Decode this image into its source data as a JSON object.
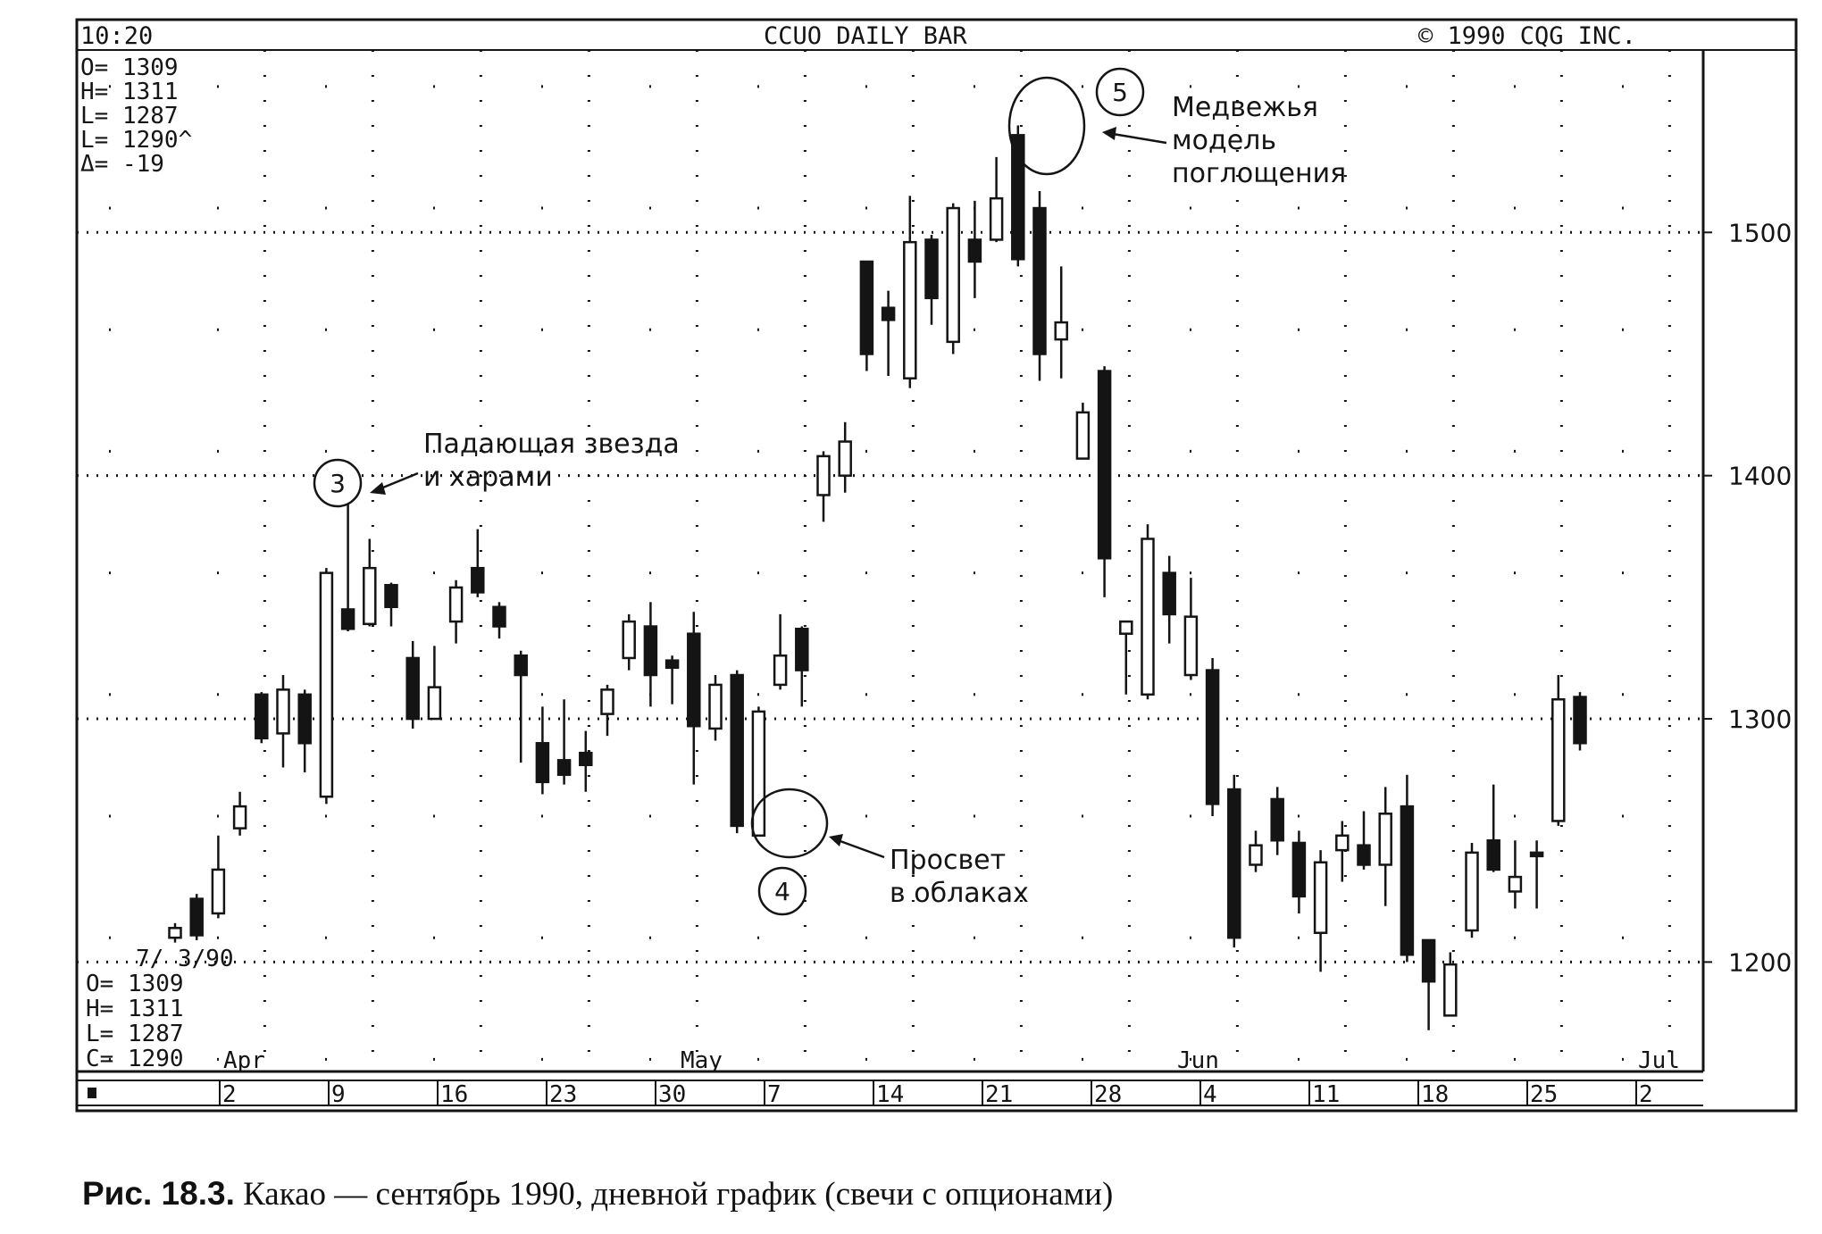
{
  "header": {
    "time": "10:20",
    "title": "CCUO DAILY BAR",
    "copyright": "©  1990 CQG INC."
  },
  "ohlc_top": [
    "O= 1309",
    "H= 1311",
    "L= 1287",
    "L= 1290^",
    "Δ=  -19"
  ],
  "ohlc_bottom": {
    "date": "7/ 3/90",
    "lines": [
      "O=  1309",
      "H=  1311",
      "L=  1287",
      "C=  1290"
    ]
  },
  "annotations": {
    "shooting_star": {
      "number": "3",
      "line1": "Падающая звезда",
      "line2": "и харами"
    },
    "piercing": {
      "number": "4",
      "line1": "Просвет",
      "line2": "в облаках"
    },
    "engulfing": {
      "number": "5",
      "line1": "Медвежья",
      "line2": "модель",
      "line3": "поглощения"
    }
  },
  "caption": {
    "label": "Рис. 18.3.",
    "text": "Какао — сентябрь 1990, дневной график (свечи с опционами)"
  },
  "colors": {
    "ink": "#141414",
    "background": "#ffffff"
  },
  "chart_data": {
    "type": "candlestick",
    "title": "CCUO DAILY BAR",
    "ylim": [
      1155,
      1575
    ],
    "y_ticks": [
      1200,
      1300,
      1400,
      1500
    ],
    "y_tick_labels": [
      "1200",
      "1300",
      "1400",
      "1500"
    ],
    "month_labels": [
      "Apr",
      "May",
      "Jun",
      "Jul"
    ],
    "week_labels": [
      "2",
      "9",
      "16",
      "23",
      "30",
      "7",
      "14",
      "21",
      "28",
      "4",
      "11",
      "18",
      "25",
      "2"
    ],
    "grid": true,
    "candles": [
      {
        "date": "Mar 28",
        "o": 1210,
        "h": 1216,
        "l": 1208,
        "c": 1214
      },
      {
        "date": "Mar 29",
        "o": 1226,
        "h": 1228,
        "l": 1209,
        "c": 1211
      },
      {
        "date": "Apr 2",
        "o": 1220,
        "h": 1252,
        "l": 1218,
        "c": 1238
      },
      {
        "date": "Apr 3",
        "o": 1255,
        "h": 1270,
        "l": 1252,
        "c": 1264
      },
      {
        "date": "Apr 4",
        "o": 1310,
        "h": 1311,
        "l": 1290,
        "c": 1292
      },
      {
        "date": "Apr 5",
        "o": 1294,
        "h": 1318,
        "l": 1280,
        "c": 1312
      },
      {
        "date": "Apr 6",
        "o": 1310,
        "h": 1312,
        "l": 1278,
        "c": 1290
      },
      {
        "date": "Apr 9",
        "o": 1268,
        "h": 1362,
        "l": 1265,
        "c": 1360
      },
      {
        "date": "Apr 10",
        "o": 1345,
        "h": 1395,
        "l": 1336,
        "c": 1337
      },
      {
        "date": "Apr 11",
        "o": 1339,
        "h": 1374,
        "l": 1338,
        "c": 1362
      },
      {
        "date": "Apr 13",
        "o": 1355,
        "h": 1356,
        "l": 1338,
        "c": 1346
      },
      {
        "date": "Apr 16",
        "o": 1325,
        "h": 1332,
        "l": 1296,
        "c": 1300
      },
      {
        "date": "Apr 17",
        "o": 1300,
        "h": 1330,
        "l": 1300,
        "c": 1313
      },
      {
        "date": "Apr 18",
        "o": 1340,
        "h": 1357,
        "l": 1331,
        "c": 1354
      },
      {
        "date": "Apr 19",
        "o": 1362,
        "h": 1378,
        "l": 1350,
        "c": 1352
      },
      {
        "date": "Apr 20",
        "o": 1346,
        "h": 1348,
        "l": 1333,
        "c": 1338
      },
      {
        "date": "Apr 23",
        "o": 1326,
        "h": 1328,
        "l": 1282,
        "c": 1318
      },
      {
        "date": "Apr 24",
        "o": 1290,
        "h": 1305,
        "l": 1269,
        "c": 1274
      },
      {
        "date": "Apr 25",
        "o": 1283,
        "h": 1308,
        "l": 1273,
        "c": 1277
      },
      {
        "date": "Apr 26",
        "o": 1286,
        "h": 1295,
        "l": 1270,
        "c": 1281
      },
      {
        "date": "Apr 27",
        "o": 1302,
        "h": 1314,
        "l": 1293,
        "c": 1312
      },
      {
        "date": "Apr 30",
        "o": 1325,
        "h": 1343,
        "l": 1320,
        "c": 1340
      },
      {
        "date": "May 1",
        "o": 1338,
        "h": 1348,
        "l": 1305,
        "c": 1318
      },
      {
        "date": "May 2",
        "o": 1324,
        "h": 1326,
        "l": 1306,
        "c": 1321
      },
      {
        "date": "May 3",
        "o": 1335,
        "h": 1344,
        "l": 1273,
        "c": 1297
      },
      {
        "date": "May 4",
        "o": 1296,
        "h": 1318,
        "l": 1291,
        "c": 1314
      },
      {
        "date": "May 7",
        "o": 1318,
        "h": 1320,
        "l": 1253,
        "c": 1256
      },
      {
        "date": "May 8",
        "o": 1252,
        "h": 1305,
        "l": 1252,
        "c": 1303
      },
      {
        "date": "May 9",
        "o": 1314,
        "h": 1343,
        "l": 1312,
        "c": 1326
      },
      {
        "date": "May 10",
        "o": 1337,
        "h": 1338,
        "l": 1305,
        "c": 1320
      },
      {
        "date": "May 11",
        "o": 1392,
        "h": 1410,
        "l": 1381,
        "c": 1408
      },
      {
        "date": "May 14",
        "o": 1400,
        "h": 1422,
        "l": 1393,
        "c": 1414
      },
      {
        "date": "May 15",
        "o": 1488,
        "h": 1488,
        "l": 1443,
        "c": 1450
      },
      {
        "date": "May 16",
        "o": 1469,
        "h": 1476,
        "l": 1441,
        "c": 1464
      },
      {
        "date": "May 17",
        "o": 1440,
        "h": 1515,
        "l": 1436,
        "c": 1496
      },
      {
        "date": "May 18",
        "o": 1497,
        "h": 1499,
        "l": 1462,
        "c": 1473
      },
      {
        "date": "May 21",
        "o": 1455,
        "h": 1512,
        "l": 1450,
        "c": 1510
      },
      {
        "date": "May 22",
        "o": 1497,
        "h": 1513,
        "l": 1473,
        "c": 1488
      },
      {
        "date": "May 23",
        "o": 1497,
        "h": 1531,
        "l": 1496,
        "c": 1514
      },
      {
        "date": "May 24",
        "o": 1540,
        "h": 1544,
        "l": 1486,
        "c": 1489
      },
      {
        "date": "May 25",
        "o": 1510,
        "h": 1517,
        "l": 1439,
        "c": 1450
      },
      {
        "date": "May 28",
        "o": 1456,
        "h": 1486,
        "l": 1440,
        "c": 1463
      },
      {
        "date": "May 29",
        "o": 1407,
        "h": 1430,
        "l": 1411,
        "c": 1426
      },
      {
        "date": "May 30",
        "o": 1443,
        "h": 1445,
        "l": 1350,
        "c": 1366
      },
      {
        "date": "Jun 1",
        "o": 1335,
        "h": 1340,
        "l": 1310,
        "c": 1340
      },
      {
        "date": "Jun 4",
        "o": 1310,
        "h": 1380,
        "l": 1308,
        "c": 1374
      },
      {
        "date": "Jun 5",
        "o": 1360,
        "h": 1367,
        "l": 1331,
        "c": 1343
      },
      {
        "date": "Jun 6",
        "o": 1318,
        "h": 1358,
        "l": 1316,
        "c": 1342
      },
      {
        "date": "Jun 7",
        "o": 1320,
        "h": 1325,
        "l": 1260,
        "c": 1265
      },
      {
        "date": "Jun 8",
        "o": 1271,
        "h": 1277,
        "l": 1206,
        "c": 1210
      },
      {
        "date": "Jun 11",
        "o": 1240,
        "h": 1254,
        "l": 1237,
        "c": 1248
      },
      {
        "date": "Jun 12",
        "o": 1267,
        "h": 1272,
        "l": 1244,
        "c": 1250
      },
      {
        "date": "Jun 13",
        "o": 1249,
        "h": 1254,
        "l": 1220,
        "c": 1227
      },
      {
        "date": "Jun 14",
        "o": 1212,
        "h": 1246,
        "l": 1196,
        "c": 1241
      },
      {
        "date": "Jun 15",
        "o": 1246,
        "h": 1258,
        "l": 1233,
        "c": 1252
      },
      {
        "date": "Jun 18",
        "o": 1248,
        "h": 1262,
        "l": 1238,
        "c": 1240
      },
      {
        "date": "Jun 19",
        "o": 1240,
        "h": 1272,
        "l": 1223,
        "c": 1261
      },
      {
        "date": "Jun 20",
        "o": 1264,
        "h": 1277,
        "l": 1200,
        "c": 1203
      },
      {
        "date": "Jun 21",
        "o": 1209,
        "h": 1209,
        "l": 1172,
        "c": 1192
      },
      {
        "date": "Jun 22",
        "o": 1178,
        "h": 1204,
        "l": 1178,
        "c": 1199
      },
      {
        "date": "Jun 25",
        "o": 1213,
        "h": 1249,
        "l": 1210,
        "c": 1245
      },
      {
        "date": "Jun 26",
        "o": 1250,
        "h": 1273,
        "l": 1237,
        "c": 1238
      },
      {
        "date": "Jun 27",
        "o": 1229,
        "h": 1250,
        "l": 1222,
        "c": 1235
      },
      {
        "date": "Jun 28",
        "o": 1245,
        "h": 1250,
        "l": 1222,
        "c": 1244
      },
      {
        "date": "Jul 2",
        "o": 1258,
        "h": 1318,
        "l": 1256,
        "c": 1308
      },
      {
        "date": "Jul 3",
        "o": 1309,
        "h": 1311,
        "l": 1287,
        "c": 1290
      }
    ]
  }
}
